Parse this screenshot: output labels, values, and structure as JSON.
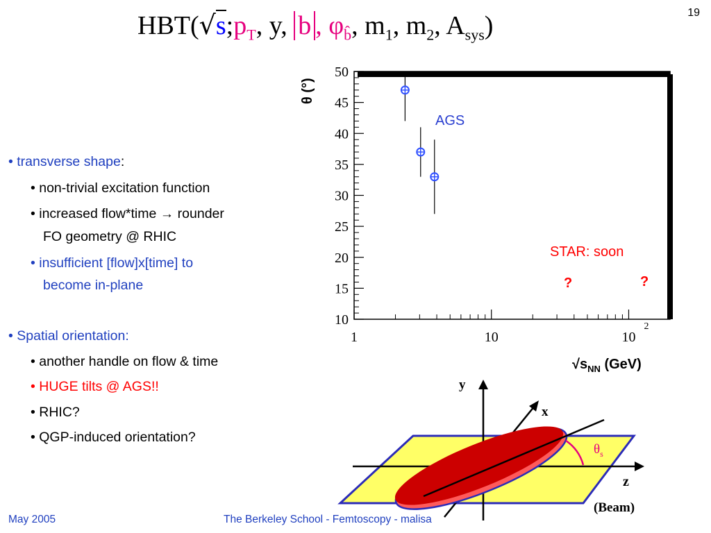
{
  "page_number": "19",
  "formula": {
    "prefix": "HBT(",
    "sqrt_arg": "s",
    "semicolon": ";",
    "pt": "p",
    "pt_sub": "T",
    "rest1": ", y,",
    "b": "b",
    "phi": ", φ",
    "phi_sub": "b̂",
    "m1": ", m",
    "m1_sub": "1",
    "m2": ", m",
    "m2_sub": "2",
    "a": ", A",
    "a_sub": "sys",
    "close": ")"
  },
  "bullets": {
    "b1": "• transverse shape",
    "b1_colon": ":",
    "b1a": "• non-trivial excitation function",
    "b1b_1": "• increased flow*time ",
    "b1b_arrow": "→",
    "b1b_2": " rounder",
    "b1b_3": "FO geometry @ RHIC",
    "b1c_1": "• insufficient [flow]x[time] to",
    "b1c_2": "become in-plane",
    "b2": "• Spatial orientation:",
    "b2a": "• another handle on flow & time",
    "b2b": "• HUGE tilts @ AGS!!",
    "b2c": "• RHIC?",
    "b2d": "• QGP-induced orientation?"
  },
  "colors": {
    "blue_text": "#1f3fbf",
    "red_text": "#ff0000",
    "magenta": "#e6007e",
    "data_blue": "#3050ff",
    "plane": "#ffff66",
    "ellipse": "#cc0000"
  },
  "chart_data": {
    "type": "scatter",
    "ylabel": "θ (°)",
    "xlabel": "√sNN (GeV)",
    "xlabel_main": "√s",
    "xlabel_sub": "NN",
    "xlabel_unit": " (GeV)",
    "x_scale": "log",
    "xlim": [
      1,
      200
    ],
    "ylim": [
      10,
      50
    ],
    "x_ticks": [
      "1",
      "10",
      "10"
    ],
    "x_tick_exp": "2",
    "y_ticks": [
      "10",
      "15",
      "20",
      "25",
      "30",
      "35",
      "40",
      "45",
      "50"
    ],
    "series": [
      {
        "name": "AGS",
        "points": [
          {
            "x": 2.35,
            "y": 47,
            "ylow": 42,
            "yhigh": 50
          },
          {
            "x": 3.05,
            "y": 37,
            "ylow": 33,
            "yhigh": 41
          },
          {
            "x": 3.85,
            "y": 33,
            "ylow": 27,
            "yhigh": 39
          }
        ]
      }
    ],
    "annotations": {
      "ags": "AGS",
      "star": "STAR: soon",
      "q1": "?",
      "q2": "?"
    }
  },
  "diagram": {
    "y": "y",
    "x": "x",
    "z": "z",
    "theta": "θ",
    "theta_sub": "s",
    "beam": "(Beam)"
  },
  "footer": {
    "left": "May 2005",
    "center": "The Berkeley School - Femtoscopy - malisa"
  }
}
